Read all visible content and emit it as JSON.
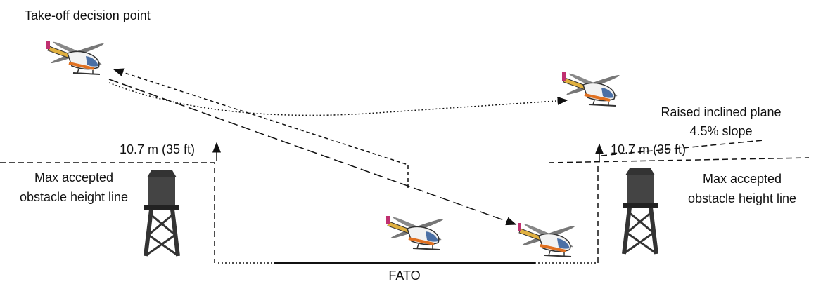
{
  "labels": {
    "decision_point": "Take-off decision point",
    "height_left": "10.7 m (35 ft)",
    "height_right": "10.7 m (35 ft)",
    "obstacle_left": [
      "Max accepted",
      "obstacle height line"
    ],
    "obstacle_right": [
      "Max accepted",
      "obstacle height line"
    ],
    "inclined_plane": [
      "Raised inclined plane",
      "4.5% slope"
    ],
    "fato": "FATO"
  }
}
